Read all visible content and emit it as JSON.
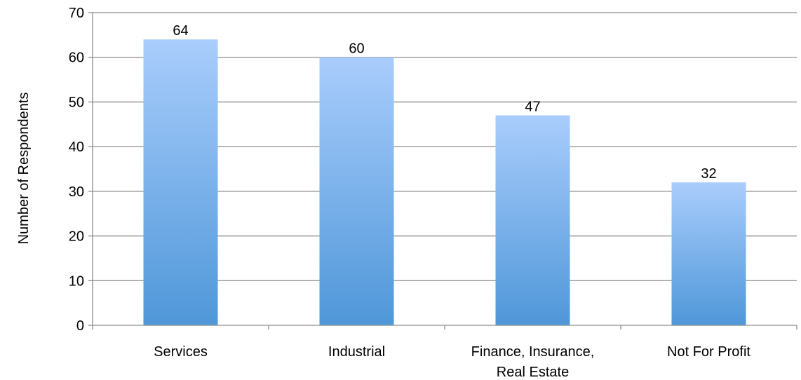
{
  "chart_data": {
    "type": "bar",
    "categories": [
      [
        "Services"
      ],
      [
        "Industrial"
      ],
      [
        "Finance, Insurance,",
        "Real Estate"
      ],
      [
        "Not For Profit"
      ]
    ],
    "values": [
      64,
      60,
      47,
      32
    ],
    "data_labels": [
      "64",
      "60",
      "47",
      "32"
    ],
    "title": "",
    "xlabel": "",
    "ylabel": "Number of Respondents",
    "ylim": [
      0,
      70
    ],
    "yticks": [
      0,
      10,
      20,
      30,
      40,
      50,
      60,
      70
    ],
    "ytick_labels": [
      "0",
      "10",
      "20",
      "30",
      "40",
      "50",
      "60",
      "70"
    ],
    "grid": "horizontal",
    "legend": "none",
    "colors": {
      "bar_top": "#a9cdfc",
      "bar_bottom": "#4f97d9",
      "gridline": "#8c8c8c",
      "axis": "#8c8c8c"
    }
  }
}
